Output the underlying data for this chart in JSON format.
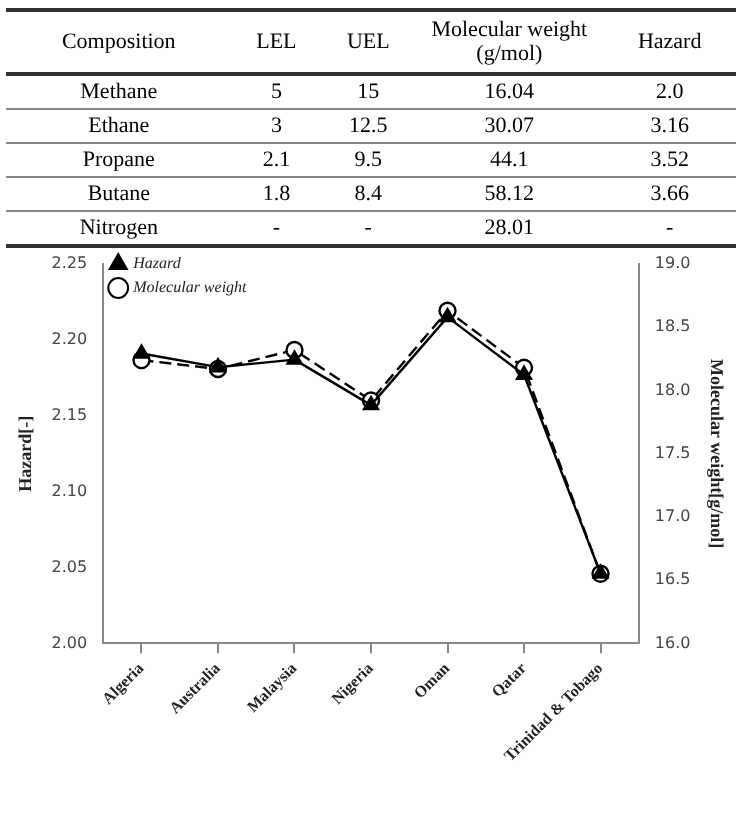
{
  "chart_data": {
    "type": "line",
    "categories": [
      "Algeria",
      "Australia",
      "Malaysia",
      "Nigeria",
      "Oman",
      "Qatar",
      "Trinidad & Tobago"
    ],
    "annotations": [
      "Composition",
      "LEL",
      "UEL",
      "Molecular weight (g/mol)",
      "Hazard",
      "Methane",
      "5",
      "15",
      "16.04",
      "2.0",
      "Ethane",
      "3",
      "12.5",
      "30.07",
      "3.16",
      "Propane",
      "2.1",
      "9.5",
      "44.1",
      "3.52",
      "Butane",
      "1.8",
      "8.4",
      "58.12",
      "3.66",
      "Nitrogen",
      "-",
      "-",
      "28.01",
      "-"
    ],
    "ylabel": "Hazard[-]",
    "y2label": "Molecular weight[g/mol]",
    "ylim": [
      2,
      2.25
    ],
    "yticks": [
      {
        "value": 2,
        "label": "2.00"
      },
      {
        "value": 2.05,
        "label": "2.05"
      },
      {
        "value": 2.1,
        "label": "2.10"
      },
      {
        "value": 2.15,
        "label": "2.15"
      },
      {
        "value": 2.2,
        "label": "2.20"
      },
      {
        "value": 2.25,
        "label": "2.25"
      }
    ],
    "y2lim": [
      16,
      19
    ],
    "y2ticks": [
      {
        "value": 16,
        "label": "16.0"
      },
      {
        "value": 16.5,
        "label": "16.5"
      },
      {
        "value": 17,
        "label": "17.0"
      },
      {
        "value": 17.5,
        "label": "17.5"
      },
      {
        "value": 18,
        "label": "18.0"
      },
      {
        "value": 18.5,
        "label": "18.5"
      },
      {
        "value": 19,
        "label": "19.0"
      }
    ],
    "legend": "top left",
    "series": [
      {
        "name": "Hazard",
        "color": "#000000",
        "marker": "triangle",
        "line_style": "solid",
        "values": [
          2.191,
          2.182,
          2.187,
          2.157,
          2.215,
          2.177,
          2.046
        ]
      },
      {
        "name": "Molecular weight",
        "color": "#000000",
        "marker": "circle",
        "line_style": "dashed",
        "axis": "y2",
        "values": [
          18.24,
          18.17,
          18.32,
          17.92,
          18.63,
          18.18,
          16.55
        ]
      }
    ]
  }
}
